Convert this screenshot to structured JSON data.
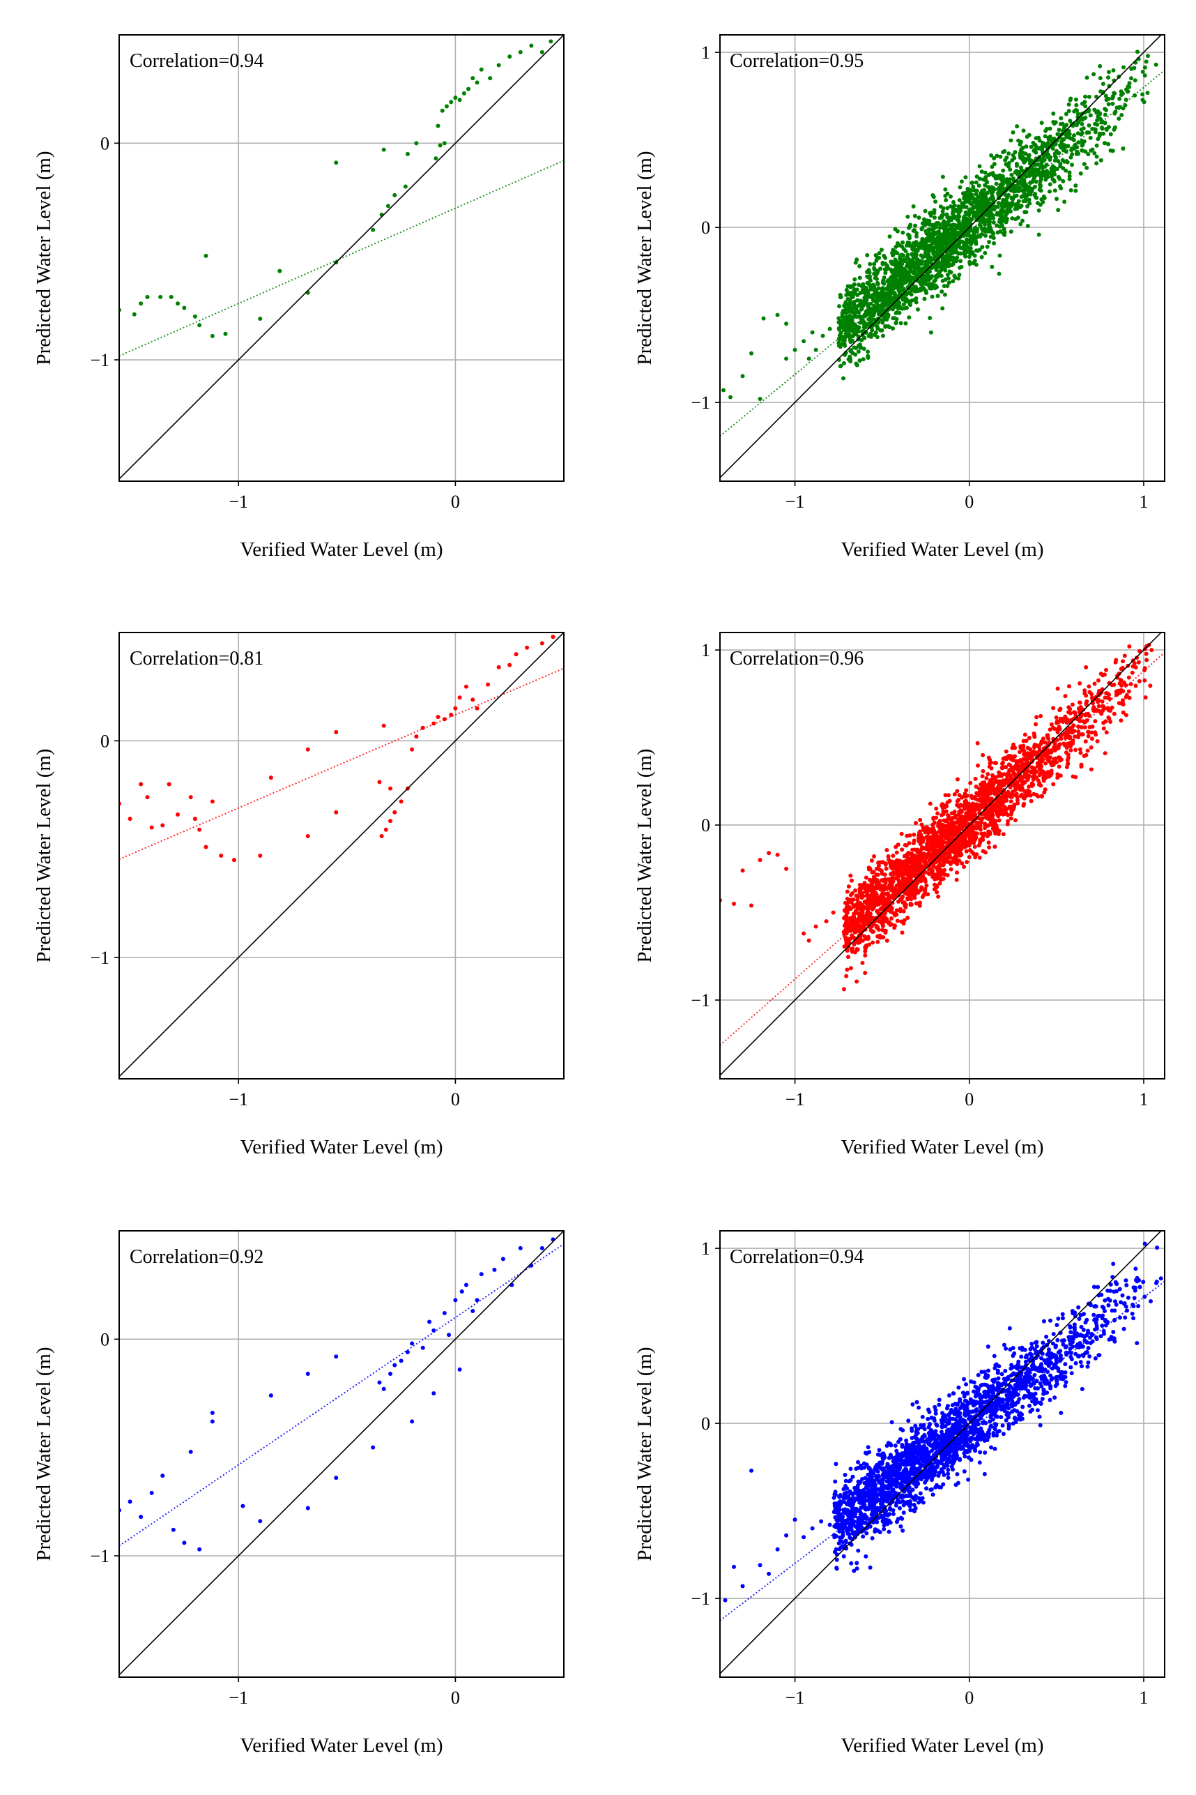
{
  "figure": {
    "layout": "3 rows x 2 columns of scatter plots",
    "reference_line": "y = x (black)",
    "fit_line_style": "dotted, series color"
  },
  "chart_data": [
    {
      "type": "scatter",
      "id": "r1c1",
      "annotation": "Correlation=0.94",
      "correlation": 0.94,
      "xlabel": "Verified Water Level (m)",
      "ylabel": "Predicted Water Level (m)",
      "xlim": [
        -1.55,
        0.5
      ],
      "ylim": [
        -1.56,
        0.5
      ],
      "xticks": [
        -1,
        0
      ],
      "yticks": [
        -1,
        0
      ],
      "xtick_labels": [
        "−1",
        "0"
      ],
      "ytick_labels": [
        "−1",
        "0"
      ],
      "grid": true,
      "color": "#008000",
      "fit": {
        "slope": 0.44,
        "intercept": -0.3
      },
      "points": [
        [
          -1.55,
          -0.77
        ],
        [
          -1.48,
          -0.79
        ],
        [
          -1.45,
          -0.74
        ],
        [
          -1.42,
          -0.71
        ],
        [
          -1.36,
          -0.71
        ],
        [
          -1.31,
          -0.71
        ],
        [
          -1.28,
          -0.74
        ],
        [
          -1.25,
          -0.76
        ],
        [
          -1.2,
          -0.8
        ],
        [
          -1.18,
          -0.84
        ],
        [
          -1.12,
          -0.89
        ],
        [
          -1.06,
          -0.88
        ],
        [
          -1.15,
          -0.52
        ],
        [
          -0.9,
          -0.81
        ],
        [
          -0.81,
          -0.59
        ],
        [
          -0.68,
          -0.69
        ],
        [
          -0.55,
          -0.55
        ],
        [
          -0.55,
          -0.09
        ],
        [
          -0.38,
          -0.4
        ],
        [
          -0.34,
          -0.33
        ],
        [
          -0.31,
          -0.29
        ],
        [
          -0.28,
          -0.24
        ],
        [
          -0.23,
          -0.2
        ],
        [
          -0.22,
          -0.05
        ],
        [
          -0.33,
          -0.03
        ],
        [
          -0.18,
          0.0
        ],
        [
          -0.09,
          -0.07
        ],
        [
          -0.07,
          -0.01
        ],
        [
          -0.05,
          0.0
        ],
        [
          -0.08,
          0.08
        ],
        [
          -0.06,
          0.15
        ],
        [
          -0.04,
          0.17
        ],
        [
          -0.02,
          0.19
        ],
        [
          0.0,
          0.21
        ],
        [
          0.02,
          0.2
        ],
        [
          0.04,
          0.23
        ],
        [
          0.06,
          0.25
        ],
        [
          0.08,
          0.3
        ],
        [
          0.1,
          0.28
        ],
        [
          0.12,
          0.34
        ],
        [
          0.16,
          0.3
        ],
        [
          0.2,
          0.36
        ],
        [
          0.25,
          0.4
        ],
        [
          0.3,
          0.42
        ],
        [
          0.35,
          0.45
        ],
        [
          0.4,
          0.42
        ],
        [
          0.44,
          0.47
        ]
      ]
    },
    {
      "type": "scatter",
      "id": "r1c2",
      "annotation": "Correlation=0.95",
      "correlation": 0.95,
      "xlabel": "Verified Water Level (m)",
      "ylabel": "Predicted Water Level (m)",
      "xlim": [
        -1.43,
        1.12
      ],
      "ylim": [
        -1.45,
        1.1
      ],
      "xticks": [
        -1,
        0,
        1
      ],
      "yticks": [
        -1,
        0,
        1
      ],
      "xtick_labels": [
        "−1",
        "0",
        "1"
      ],
      "ytick_labels": [
        "−1",
        "0",
        "1"
      ],
      "grid": true,
      "color": "#008000",
      "fit": {
        "slope": 0.82,
        "intercept": -0.02
      },
      "cloud": {
        "x_range": [
          -0.75,
          1.12
        ],
        "slope": 0.82,
        "intercept": 0.02,
        "spread": 0.12,
        "count": 2400
      },
      "points": [
        [
          -1.37,
          -0.97
        ],
        [
          -1.3,
          -0.85
        ],
        [
          -1.25,
          -0.72
        ],
        [
          -1.18,
          -0.52
        ],
        [
          -1.1,
          -0.5
        ],
        [
          -1.05,
          -0.55
        ],
        [
          -1.0,
          -0.7
        ],
        [
          -0.95,
          -0.65
        ],
        [
          -0.9,
          -0.6
        ],
        [
          -0.88,
          -0.7
        ],
        [
          -0.84,
          -0.62
        ],
        [
          -0.8,
          -0.58
        ],
        [
          -1.41,
          -0.93
        ],
        [
          -1.2,
          -0.98
        ],
        [
          -1.05,
          -0.75
        ],
        [
          -0.92,
          -0.75
        ]
      ]
    },
    {
      "type": "scatter",
      "id": "r2c1",
      "annotation": "Correlation=0.81",
      "correlation": 0.81,
      "xlabel": "Verified Water Level (m)",
      "ylabel": "Predicted Water Level (m)",
      "xlim": [
        -1.55,
        0.5
      ],
      "ylim": [
        -1.56,
        0.5
      ],
      "xticks": [
        -1,
        0
      ],
      "yticks": [
        -1,
        0
      ],
      "xtick_labels": [
        "−1",
        "0"
      ],
      "ytick_labels": [
        "−1",
        "0"
      ],
      "grid": true,
      "color": "#ff0000",
      "fit": {
        "slope": 0.43,
        "intercept": 0.12
      },
      "points": [
        [
          -1.55,
          -0.29
        ],
        [
          -1.5,
          -0.36
        ],
        [
          -1.45,
          -0.2
        ],
        [
          -1.42,
          -0.26
        ],
        [
          -1.4,
          -0.4
        ],
        [
          -1.35,
          -0.39
        ],
        [
          -1.32,
          -0.2
        ],
        [
          -1.28,
          -0.34
        ],
        [
          -1.22,
          -0.26
        ],
        [
          -1.2,
          -0.36
        ],
        [
          -1.18,
          -0.41
        ],
        [
          -1.15,
          -0.49
        ],
        [
          -1.12,
          -0.28
        ],
        [
          -1.08,
          -0.53
        ],
        [
          -1.02,
          -0.55
        ],
        [
          -0.9,
          -0.53
        ],
        [
          -0.85,
          -0.17
        ],
        [
          -0.68,
          -0.44
        ],
        [
          -0.55,
          0.04
        ],
        [
          -0.55,
          -0.33
        ],
        [
          -0.68,
          -0.04
        ],
        [
          -0.34,
          -0.44
        ],
        [
          -0.32,
          -0.41
        ],
        [
          -0.3,
          -0.37
        ],
        [
          -0.28,
          -0.33
        ],
        [
          -0.25,
          -0.28
        ],
        [
          -0.22,
          -0.22
        ],
        [
          -0.35,
          -0.19
        ],
        [
          -0.3,
          -0.22
        ],
        [
          -0.33,
          0.07
        ],
        [
          -0.2,
          -0.04
        ],
        [
          -0.18,
          0.02
        ],
        [
          -0.15,
          0.06
        ],
        [
          -0.1,
          0.08
        ],
        [
          -0.08,
          0.11
        ],
        [
          -0.05,
          0.1
        ],
        [
          -0.02,
          0.12
        ],
        [
          0.0,
          0.15
        ],
        [
          0.02,
          0.2
        ],
        [
          0.05,
          0.25
        ],
        [
          0.08,
          0.19
        ],
        [
          0.1,
          0.15
        ],
        [
          0.15,
          0.26
        ],
        [
          0.2,
          0.34
        ],
        [
          0.25,
          0.35
        ],
        [
          0.28,
          0.4
        ],
        [
          0.33,
          0.43
        ],
        [
          0.4,
          0.45
        ],
        [
          0.45,
          0.48
        ]
      ]
    },
    {
      "type": "scatter",
      "id": "r2c2",
      "annotation": "Correlation=0.96",
      "correlation": 0.96,
      "xlabel": "Verified Water Level (m)",
      "ylabel": "Predicted Water Level (m)",
      "xlim": [
        -1.43,
        1.12
      ],
      "ylim": [
        -1.45,
        1.1
      ],
      "xticks": [
        -1,
        0,
        1
      ],
      "yticks": [
        -1,
        0,
        1
      ],
      "xtick_labels": [
        "−1",
        "0",
        "1"
      ],
      "ytick_labels": [
        "−1",
        "0",
        "1"
      ],
      "grid": true,
      "color": "#ff0000",
      "fit": {
        "slope": 0.88,
        "intercept": 0.0
      },
      "cloud": {
        "x_range": [
          -0.72,
          1.12
        ],
        "slope": 0.88,
        "intercept": 0.02,
        "spread": 0.11,
        "count": 2400
      },
      "points": [
        [
          -1.43,
          -0.43
        ],
        [
          -1.35,
          -0.45
        ],
        [
          -1.3,
          -0.26
        ],
        [
          -1.25,
          -0.46
        ],
        [
          -1.2,
          -0.2
        ],
        [
          -1.15,
          -0.16
        ],
        [
          -1.1,
          -0.17
        ],
        [
          -1.05,
          -0.25
        ],
        [
          -0.95,
          -0.62
        ],
        [
          -0.92,
          -0.66
        ],
        [
          -0.88,
          -0.58
        ],
        [
          -0.82,
          -0.55
        ],
        [
          -0.78,
          -0.5
        ]
      ]
    },
    {
      "type": "scatter",
      "id": "r3c1",
      "annotation": "Correlation=0.92",
      "correlation": 0.92,
      "xlabel": "Verified Water Level (m)",
      "ylabel": "Predicted Water Level (m)",
      "xlim": [
        -1.55,
        0.5
      ],
      "ylim": [
        -1.56,
        0.5
      ],
      "xticks": [
        -1,
        0
      ],
      "yticks": [
        -1,
        0
      ],
      "xtick_labels": [
        "−1",
        "0"
      ],
      "ytick_labels": [
        "−1",
        "0"
      ],
      "grid": true,
      "color": "#0000ff",
      "fit": {
        "slope": 0.68,
        "intercept": 0.1
      },
      "points": [
        [
          -1.55,
          -0.79
        ],
        [
          -1.5,
          -0.75
        ],
        [
          -1.45,
          -0.82
        ],
        [
          -1.4,
          -0.71
        ],
        [
          -1.35,
          -0.63
        ],
        [
          -1.3,
          -0.88
        ],
        [
          -1.25,
          -0.94
        ],
        [
          -1.22,
          -0.52
        ],
        [
          -1.18,
          -0.97
        ],
        [
          -1.12,
          -0.38
        ],
        [
          -1.12,
          -0.34
        ],
        [
          -0.98,
          -0.77
        ],
        [
          -0.9,
          -0.84
        ],
        [
          -0.85,
          -0.26
        ],
        [
          -0.68,
          -0.78
        ],
        [
          -0.68,
          -0.16
        ],
        [
          -0.55,
          -0.08
        ],
        [
          -0.55,
          -0.64
        ],
        [
          -0.38,
          -0.5
        ],
        [
          -0.35,
          -0.2
        ],
        [
          -0.33,
          -0.23
        ],
        [
          -0.3,
          -0.16
        ],
        [
          -0.28,
          -0.12
        ],
        [
          -0.25,
          -0.1
        ],
        [
          -0.22,
          -0.06
        ],
        [
          -0.2,
          -0.02
        ],
        [
          -0.2,
          -0.38
        ],
        [
          -0.15,
          -0.04
        ],
        [
          -0.12,
          0.08
        ],
        [
          -0.1,
          0.04
        ],
        [
          -0.1,
          -0.25
        ],
        [
          -0.05,
          0.12
        ],
        [
          -0.03,
          0.02
        ],
        [
          0.0,
          0.18
        ],
        [
          0.02,
          -0.14
        ],
        [
          0.03,
          0.22
        ],
        [
          0.05,
          0.25
        ],
        [
          0.08,
          0.13
        ],
        [
          0.1,
          0.18
        ],
        [
          0.12,
          0.3
        ],
        [
          0.18,
          0.32
        ],
        [
          0.22,
          0.37
        ],
        [
          0.26,
          0.25
        ],
        [
          0.3,
          0.42
        ],
        [
          0.35,
          0.34
        ],
        [
          0.4,
          0.42
        ],
        [
          0.45,
          0.46
        ]
      ]
    },
    {
      "type": "scatter",
      "id": "r3c2",
      "annotation": "Correlation=0.94",
      "correlation": 0.94,
      "xlabel": "Verified Water Level (m)",
      "ylabel": "Predicted Water Level (m)",
      "xlim": [
        -1.43,
        1.12
      ],
      "ylim": [
        -1.45,
        1.1
      ],
      "xticks": [
        -1,
        0,
        1
      ],
      "yticks": [
        -1,
        0,
        1
      ],
      "xtick_labels": [
        "−1",
        "0",
        "1"
      ],
      "ytick_labels": [
        "−1",
        "0",
        "1"
      ],
      "grid": true,
      "color": "#0000ff",
      "fit": {
        "slope": 0.76,
        "intercept": -0.04
      },
      "cloud": {
        "x_range": [
          -0.78,
          1.12
        ],
        "slope": 0.76,
        "intercept": 0.0,
        "spread": 0.11,
        "count": 2400
      },
      "points": [
        [
          -1.4,
          -1.01
        ],
        [
          -1.35,
          -0.82
        ],
        [
          -1.3,
          -0.93
        ],
        [
          -1.25,
          -0.27
        ],
        [
          -1.2,
          -0.81
        ],
        [
          -1.1,
          -0.72
        ],
        [
          -1.05,
          -0.64
        ],
        [
          -1.0,
          -0.55
        ],
        [
          -0.95,
          -0.65
        ],
        [
          -0.9,
          -0.6
        ],
        [
          -0.85,
          -0.56
        ],
        [
          -0.8,
          -0.58
        ],
        [
          -1.15,
          -0.86
        ]
      ]
    }
  ]
}
